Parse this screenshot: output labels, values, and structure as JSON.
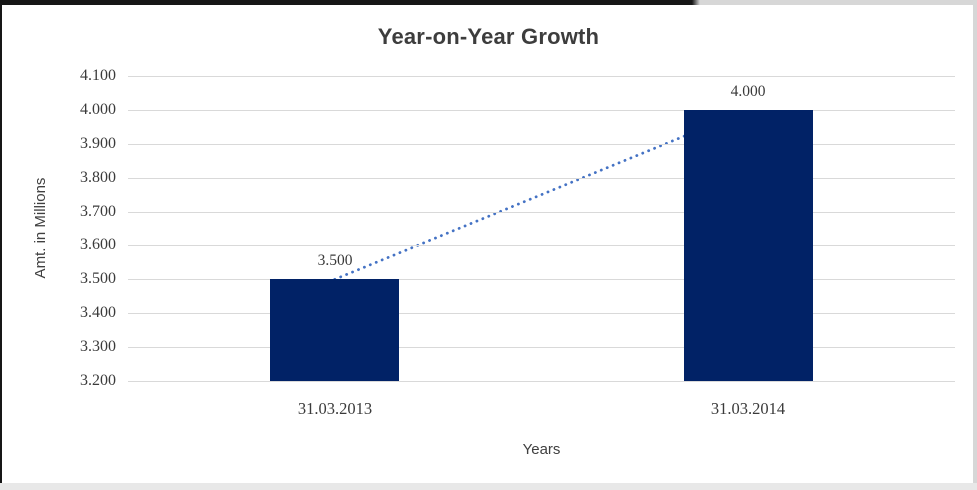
{
  "chart_data": {
    "type": "bar",
    "title": "Year-on-Year Growth",
    "categories": [
      "31.03.2013",
      "31.03.2014"
    ],
    "values": [
      3.5,
      4.0
    ],
    "data_labels": [
      "3.500",
      "4.000"
    ],
    "xlabel": "Years",
    "ylabel": "Amt. in Millions",
    "ylim": [
      3.2,
      4.1
    ],
    "ytick_step": 0.1,
    "ytick_labels": [
      "3.200",
      "3.300",
      "3.400",
      "3.500",
      "3.600",
      "3.700",
      "3.800",
      "3.900",
      "4.000",
      "4.100"
    ],
    "grid": true,
    "legend": false,
    "bar_color": "#012266",
    "gridline_color": "#d9d9d9",
    "text_color": "#3a3a3a",
    "trendline": {
      "style": "dotted",
      "color": "#4472c4",
      "connects": "bar-tops"
    }
  }
}
